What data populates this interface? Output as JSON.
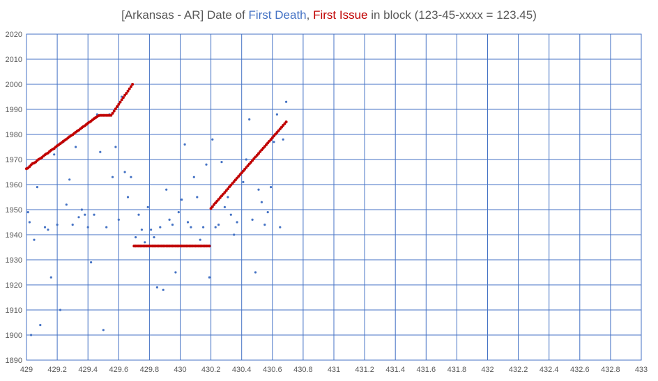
{
  "chart_data": {
    "type": "scatter",
    "title": {
      "prefix": "[Arkansas - AR] Date of ",
      "first_death": "First Death",
      "sep": ", ",
      "first_issue": "First Issue",
      "suffix": " in block (123-45-xxxx = 123.45)"
    },
    "colors": {
      "first_death": "#4472C4",
      "first_issue": "#C00000",
      "grid": "#4472C4",
      "title_text": "#595959",
      "tick_text": "#595959"
    },
    "xlim": [
      429,
      433
    ],
    "ylim": [
      1890,
      2020
    ],
    "xticks": [
      429,
      429.2,
      429.4,
      429.6,
      429.8,
      430,
      430.2,
      430.4,
      430.6,
      430.8,
      431,
      431.2,
      431.4,
      431.6,
      431.8,
      432,
      432.2,
      432.4,
      432.6,
      432.8,
      433
    ],
    "xtick_labels": [
      "429",
      "429.2",
      "429.4",
      "429.6",
      "429.8",
      "430",
      "430.2",
      "430.4",
      "430.6",
      "430.8",
      "431",
      "431.2",
      "431.4",
      "431.6",
      "431.8",
      "432",
      "432.2",
      "432.4",
      "432.6",
      "432.8",
      "433"
    ],
    "yticks": [
      1890,
      1900,
      1910,
      1920,
      1930,
      1940,
      1950,
      1960,
      1970,
      1980,
      1990,
      2000,
      2010,
      2020
    ],
    "ytick_labels": [
      "1890",
      "1900",
      "1910",
      "1920",
      "1930",
      "1940",
      "1950",
      "1960",
      "1970",
      "1980",
      "1990",
      "2000",
      "2010",
      "2020"
    ],
    "grid": true,
    "series": [
      {
        "name": "First Issue",
        "color": "#C00000",
        "points": [
          [
            429.0,
            1966.3
          ],
          [
            429.01,
            1966.6
          ],
          [
            429.02,
            1967.2
          ],
          [
            429.03,
            1967.9
          ],
          [
            429.04,
            1968.4
          ],
          [
            429.05,
            1968.6
          ],
          [
            429.06,
            1969.0
          ],
          [
            429.07,
            1969.6
          ],
          [
            429.08,
            1970.1
          ],
          [
            429.09,
            1970.4
          ],
          [
            429.1,
            1970.8
          ],
          [
            429.11,
            1971.4
          ],
          [
            429.12,
            1971.9
          ],
          [
            429.13,
            1972.3
          ],
          [
            429.14,
            1972.6
          ],
          [
            429.15,
            1973.2
          ],
          [
            429.16,
            1973.7
          ],
          [
            429.17,
            1974.1
          ],
          [
            429.18,
            1974.4
          ],
          [
            429.19,
            1975.0
          ],
          [
            429.2,
            1975.5
          ],
          [
            429.21,
            1975.9
          ],
          [
            429.22,
            1976.3
          ],
          [
            429.23,
            1976.8
          ],
          [
            429.24,
            1977.3
          ],
          [
            429.25,
            1977.7
          ],
          [
            429.26,
            1978.1
          ],
          [
            429.27,
            1978.6
          ],
          [
            429.28,
            1979.1
          ],
          [
            429.29,
            1979.5
          ],
          [
            429.3,
            1979.9
          ],
          [
            429.31,
            1980.4
          ],
          [
            429.32,
            1980.9
          ],
          [
            429.33,
            1981.3
          ],
          [
            429.34,
            1981.7
          ],
          [
            429.35,
            1982.2
          ],
          [
            429.36,
            1982.7
          ],
          [
            429.37,
            1983.1
          ],
          [
            429.38,
            1983.5
          ],
          [
            429.39,
            1984.0
          ],
          [
            429.4,
            1984.5
          ],
          [
            429.41,
            1984.9
          ],
          [
            429.42,
            1985.3
          ],
          [
            429.43,
            1985.8
          ],
          [
            429.44,
            1986.3
          ],
          [
            429.45,
            1986.7
          ],
          [
            429.46,
            1987.1
          ],
          [
            429.47,
            1987.5
          ],
          [
            429.48,
            1987.6
          ],
          [
            429.49,
            1987.6
          ],
          [
            429.5,
            1987.6
          ],
          [
            429.51,
            1987.6
          ],
          [
            429.52,
            1987.6
          ],
          [
            429.53,
            1987.6
          ],
          [
            429.54,
            1987.6
          ],
          [
            429.55,
            1987.6
          ],
          [
            429.56,
            1988.4
          ],
          [
            429.57,
            1989.3
          ],
          [
            429.58,
            1990.2
          ],
          [
            429.59,
            1991.1
          ],
          [
            429.6,
            1992.0
          ],
          [
            429.61,
            1992.9
          ],
          [
            429.62,
            1993.8
          ],
          [
            429.63,
            1994.7
          ],
          [
            429.64,
            1995.6
          ],
          [
            429.65,
            1996.4
          ],
          [
            429.66,
            1997.3
          ],
          [
            429.67,
            1998.2
          ],
          [
            429.68,
            1999.1
          ],
          [
            429.69,
            2000.0
          ],
          [
            429.7,
            1935.5
          ],
          [
            429.71,
            1935.5
          ],
          [
            429.72,
            1935.5
          ],
          [
            429.73,
            1935.5
          ],
          [
            429.74,
            1935.5
          ],
          [
            429.75,
            1935.5
          ],
          [
            429.76,
            1935.5
          ],
          [
            429.77,
            1935.5
          ],
          [
            429.78,
            1935.5
          ],
          [
            429.79,
            1935.5
          ],
          [
            429.8,
            1935.5
          ],
          [
            429.81,
            1935.5
          ],
          [
            429.82,
            1935.5
          ],
          [
            429.83,
            1935.5
          ],
          [
            429.84,
            1935.5
          ],
          [
            429.85,
            1935.5
          ],
          [
            429.86,
            1935.5
          ],
          [
            429.87,
            1935.5
          ],
          [
            429.88,
            1935.5
          ],
          [
            429.89,
            1935.5
          ],
          [
            429.9,
            1935.5
          ],
          [
            429.91,
            1935.5
          ],
          [
            429.92,
            1935.5
          ],
          [
            429.93,
            1935.5
          ],
          [
            429.94,
            1935.5
          ],
          [
            429.95,
            1935.5
          ],
          [
            429.96,
            1935.5
          ],
          [
            429.97,
            1935.5
          ],
          [
            429.98,
            1935.5
          ],
          [
            429.99,
            1935.5
          ],
          [
            430.0,
            1935.5
          ],
          [
            430.01,
            1935.5
          ],
          [
            430.02,
            1935.5
          ],
          [
            430.03,
            1935.5
          ],
          [
            430.04,
            1935.5
          ],
          [
            430.05,
            1935.5
          ],
          [
            430.06,
            1935.5
          ],
          [
            430.07,
            1935.5
          ],
          [
            430.08,
            1935.5
          ],
          [
            430.09,
            1935.5
          ],
          [
            430.1,
            1935.5
          ],
          [
            430.11,
            1935.5
          ],
          [
            430.12,
            1935.5
          ],
          [
            430.13,
            1935.5
          ],
          [
            430.14,
            1935.5
          ],
          [
            430.15,
            1935.5
          ],
          [
            430.16,
            1935.5
          ],
          [
            430.17,
            1935.5
          ],
          [
            430.18,
            1935.5
          ],
          [
            430.19,
            1935.5
          ],
          [
            430.2,
            1950.5
          ],
          [
            430.21,
            1951.2
          ],
          [
            430.22,
            1952.0
          ],
          [
            430.23,
            1952.7
          ],
          [
            430.24,
            1953.4
          ],
          [
            430.25,
            1954.1
          ],
          [
            430.26,
            1954.8
          ],
          [
            430.27,
            1955.5
          ],
          [
            430.28,
            1956.2
          ],
          [
            430.29,
            1956.9
          ],
          [
            430.3,
            1957.6
          ],
          [
            430.31,
            1958.3
          ],
          [
            430.32,
            1959.1
          ],
          [
            430.33,
            1959.8
          ],
          [
            430.34,
            1960.5
          ],
          [
            430.35,
            1961.2
          ],
          [
            430.36,
            1961.9
          ],
          [
            430.37,
            1962.6
          ],
          [
            430.38,
            1963.3
          ],
          [
            430.39,
            1964.0
          ],
          [
            430.4,
            1964.7
          ],
          [
            430.41,
            1965.4
          ],
          [
            430.42,
            1966.1
          ],
          [
            430.43,
            1966.8
          ],
          [
            430.44,
            1967.5
          ],
          [
            430.45,
            1968.2
          ],
          [
            430.46,
            1968.9
          ],
          [
            430.47,
            1969.6
          ],
          [
            430.48,
            1970.3
          ],
          [
            430.49,
            1971.0
          ],
          [
            430.5,
            1971.7
          ],
          [
            430.51,
            1972.4
          ],
          [
            430.52,
            1973.1
          ],
          [
            430.53,
            1973.8
          ],
          [
            430.54,
            1974.5
          ],
          [
            430.55,
            1975.2
          ],
          [
            430.56,
            1975.9
          ],
          [
            430.57,
            1976.6
          ],
          [
            430.58,
            1977.3
          ],
          [
            430.59,
            1978.0
          ],
          [
            430.6,
            1978.7
          ],
          [
            430.61,
            1979.4
          ],
          [
            430.62,
            1980.1
          ],
          [
            430.63,
            1980.8
          ],
          [
            430.64,
            1981.5
          ],
          [
            430.65,
            1982.2
          ],
          [
            430.66,
            1982.9
          ],
          [
            430.67,
            1983.6
          ],
          [
            430.68,
            1984.3
          ],
          [
            430.69,
            1985.0
          ]
        ]
      },
      {
        "name": "First Death",
        "color": "#4472C4",
        "points": [
          [
            429.01,
            1949
          ],
          [
            429.02,
            1945
          ],
          [
            429.03,
            1900
          ],
          [
            429.05,
            1938
          ],
          [
            429.07,
            1959
          ],
          [
            429.09,
            1904
          ],
          [
            429.12,
            1943
          ],
          [
            429.14,
            1942
          ],
          [
            429.16,
            1923
          ],
          [
            429.18,
            1972
          ],
          [
            429.2,
            1944
          ],
          [
            429.22,
            1910
          ],
          [
            429.24,
            1977
          ],
          [
            429.26,
            1952
          ],
          [
            429.28,
            1962
          ],
          [
            429.3,
            1944
          ],
          [
            429.32,
            1975
          ],
          [
            429.34,
            1947
          ],
          [
            429.36,
            1950
          ],
          [
            429.38,
            1948
          ],
          [
            429.4,
            1943
          ],
          [
            429.42,
            1929
          ],
          [
            429.44,
            1948
          ],
          [
            429.46,
            1988
          ],
          [
            429.48,
            1973
          ],
          [
            429.5,
            1902
          ],
          [
            429.52,
            1943
          ],
          [
            429.54,
            1988
          ],
          [
            429.56,
            1963
          ],
          [
            429.58,
            1975
          ],
          [
            429.6,
            1946
          ],
          [
            429.62,
            1995
          ],
          [
            429.64,
            1965
          ],
          [
            429.66,
            1955
          ],
          [
            429.68,
            1963
          ],
          [
            429.71,
            1939
          ],
          [
            429.73,
            1948
          ],
          [
            429.75,
            1942
          ],
          [
            429.77,
            1937
          ],
          [
            429.79,
            1951
          ],
          [
            429.81,
            1942
          ],
          [
            429.83,
            1939
          ],
          [
            429.85,
            1919
          ],
          [
            429.87,
            1943
          ],
          [
            429.89,
            1918
          ],
          [
            429.91,
            1958
          ],
          [
            429.93,
            1946
          ],
          [
            429.95,
            1944
          ],
          [
            429.97,
            1925
          ],
          [
            429.99,
            1949
          ],
          [
            430.01,
            1954
          ],
          [
            430.03,
            1976
          ],
          [
            430.05,
            1945
          ],
          [
            430.07,
            1943
          ],
          [
            430.09,
            1963
          ],
          [
            430.11,
            1955
          ],
          [
            430.13,
            1938
          ],
          [
            430.15,
            1943
          ],
          [
            430.17,
            1968
          ],
          [
            430.19,
            1923
          ],
          [
            430.21,
            1978
          ],
          [
            430.23,
            1943
          ],
          [
            430.25,
            1944
          ],
          [
            430.27,
            1969
          ],
          [
            430.29,
            1951
          ],
          [
            430.31,
            1955
          ],
          [
            430.33,
            1948
          ],
          [
            430.35,
            1940
          ],
          [
            430.37,
            1945
          ],
          [
            430.39,
            1964
          ],
          [
            430.41,
            1961
          ],
          [
            430.43,
            1970
          ],
          [
            430.45,
            1986
          ],
          [
            430.47,
            1946
          ],
          [
            430.49,
            1925
          ],
          [
            430.51,
            1958
          ],
          [
            430.53,
            1953
          ],
          [
            430.55,
            1944
          ],
          [
            430.57,
            1949
          ],
          [
            430.59,
            1959
          ],
          [
            430.61,
            1977
          ],
          [
            430.63,
            1988
          ],
          [
            430.65,
            1943
          ],
          [
            430.67,
            1978
          ],
          [
            430.69,
            1993
          ]
        ]
      }
    ]
  }
}
